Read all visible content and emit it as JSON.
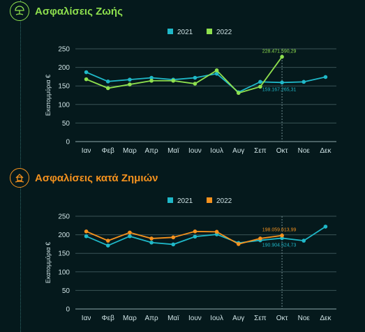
{
  "sections": [
    {
      "title": "Ασφαλίσεις Ζωής",
      "accent": "#8ee04e",
      "icon": "umbrella-hand-icon"
    },
    {
      "title": "Ασφαλίσεις κατά Ζημιών",
      "accent": "#f5921e",
      "icon": "house-hand-icon"
    }
  ],
  "chart_data": [
    {
      "type": "line",
      "title": "",
      "ylabel": "Εκατομμύρια €",
      "xlabel": "",
      "categories": [
        "Ιαν",
        "Φεβ",
        "Μαρ",
        "Απρ",
        "Μαϊ",
        "Ιουν",
        "Ιουλ",
        "Αυγ",
        "Σεπ",
        "Οκτ",
        "Νοε",
        "Δεκ"
      ],
      "ylim": [
        0,
        250
      ],
      "yticks": [
        0,
        50,
        100,
        150,
        200,
        250
      ],
      "grid": true,
      "legend": "top-center",
      "series": [
        {
          "name": "2021",
          "color": "#1fb8c8",
          "values": [
            187,
            162,
            167,
            172,
            167,
            172,
            183,
            133,
            161,
            159.17,
            161,
            174
          ]
        },
        {
          "name": "2022",
          "color": "#8ee04e",
          "values": [
            168,
            144,
            154,
            164,
            164,
            156,
            192,
            131,
            148,
            228.47,
            null,
            null
          ]
        }
      ],
      "annotations": [
        {
          "series": "2022",
          "category": "Οκτ",
          "text": "228.471.590,29"
        },
        {
          "series": "2021",
          "category": "Οκτ",
          "text": "159.167.265,31"
        }
      ],
      "highlight_category": "Οκτ"
    },
    {
      "type": "line",
      "title": "",
      "ylabel": "Εκατομμύρια €",
      "xlabel": "",
      "categories": [
        "Ιαν",
        "Φεβ",
        "Μαρ",
        "Απρ",
        "Μαϊ",
        "Ιουν",
        "Ιουλ",
        "Αυγ",
        "Σεπ",
        "Οκτ",
        "Νοε",
        "Δεκ"
      ],
      "ylim": [
        0,
        250
      ],
      "yticks": [
        0,
        50,
        100,
        150,
        200,
        250
      ],
      "grid": true,
      "legend": "top-center",
      "series": [
        {
          "name": "2021",
          "color": "#1fb8c8",
          "values": [
            196,
            171,
            196,
            179,
            174,
            195,
            201,
            178,
            185,
            190.9,
            184,
            222
          ]
        },
        {
          "name": "2022",
          "color": "#f5921e",
          "values": [
            209,
            184,
            206,
            190,
            193,
            209,
            208,
            175,
            190,
            198.06,
            null,
            null
          ]
        }
      ],
      "annotations": [
        {
          "series": "2022",
          "category": "Οκτ",
          "text": "198.059.613,99"
        },
        {
          "series": "2021",
          "category": "Οκτ",
          "text": "190.904.524,73"
        }
      ],
      "highlight_category": "Οκτ"
    }
  ]
}
